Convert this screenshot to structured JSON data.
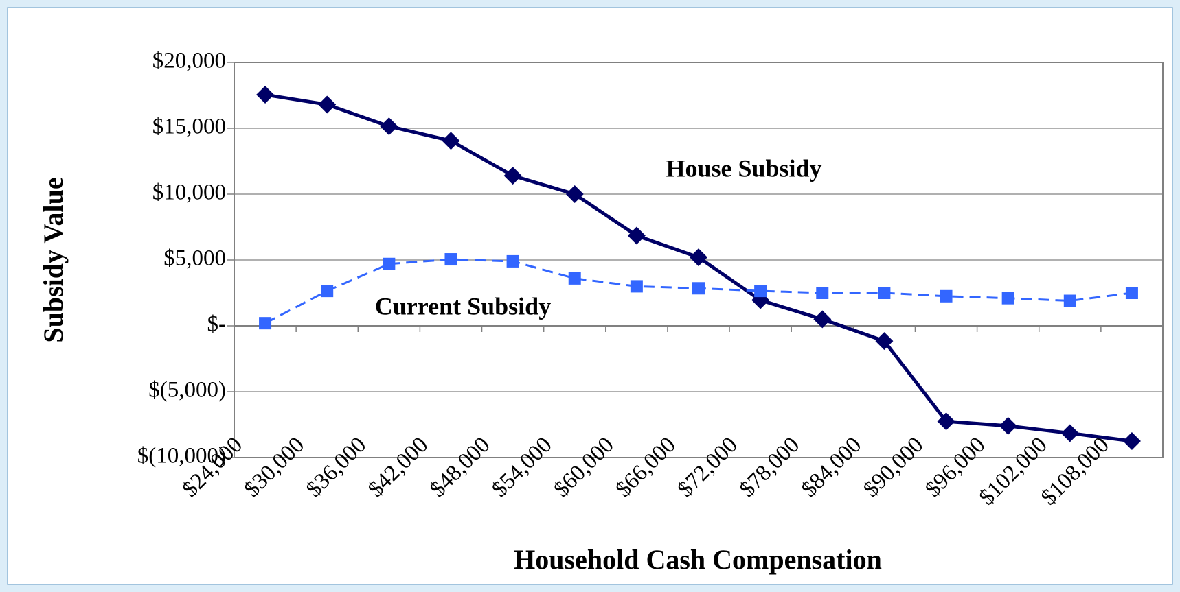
{
  "chart_data": {
    "type": "line",
    "x_label": "Household Cash Compensation",
    "y_label": "Subsidy Value",
    "x": [
      27000,
      33000,
      39000,
      45000,
      51000,
      57000,
      63000,
      69000,
      75000,
      81000,
      87000,
      93000,
      99000,
      105000,
      111000
    ],
    "series": [
      {
        "name": "House Subsidy",
        "color": "#000066",
        "marker": "diamond",
        "dash": false,
        "values": [
          17550,
          16800,
          15150,
          14050,
          11400,
          10000,
          6850,
          5200,
          1950,
          500,
          -1150,
          -7250,
          -7600,
          -8150,
          -8750
        ]
      },
      {
        "name": "Current Subsidy",
        "color": "#3366ff",
        "marker": "square",
        "dash": true,
        "values": [
          200,
          2650,
          4700,
          5050,
          4900,
          3600,
          3000,
          2850,
          2650,
          2500,
          2500,
          2250,
          2100,
          1900,
          2500
        ]
      }
    ],
    "xlim": [
      24000,
      114000
    ],
    "xticks": [
      {
        "value": 24000,
        "label": "$24,000"
      },
      {
        "value": 30000,
        "label": "$30,000"
      },
      {
        "value": 36000,
        "label": "$36,000"
      },
      {
        "value": 42000,
        "label": "$42,000"
      },
      {
        "value": 48000,
        "label": "$48,000"
      },
      {
        "value": 54000,
        "label": "$54,000"
      },
      {
        "value": 60000,
        "label": "$60,000"
      },
      {
        "value": 66000,
        "label": "$66,000"
      },
      {
        "value": 72000,
        "label": "$72,000"
      },
      {
        "value": 78000,
        "label": "$78,000"
      },
      {
        "value": 84000,
        "label": "$84,000"
      },
      {
        "value": 90000,
        "label": "$90,000"
      },
      {
        "value": 96000,
        "label": "$96,000"
      },
      {
        "value": 102000,
        "label": "$102,000"
      },
      {
        "value": 108000,
        "label": "$108,000"
      }
    ],
    "ylim": [
      -10000,
      20000
    ],
    "yticks": [
      {
        "value": -10000,
        "label": "$(10,000)"
      },
      {
        "value": -5000,
        "label": "$(5,000)"
      },
      {
        "value": 0,
        "label": "$-"
      },
      {
        "value": 5000,
        "label": "$5,000"
      },
      {
        "value": 10000,
        "label": "$10,000"
      },
      {
        "value": 15000,
        "label": "$15,000"
      },
      {
        "value": 20000,
        "label": "$20,000"
      }
    ],
    "grid": true
  }
}
